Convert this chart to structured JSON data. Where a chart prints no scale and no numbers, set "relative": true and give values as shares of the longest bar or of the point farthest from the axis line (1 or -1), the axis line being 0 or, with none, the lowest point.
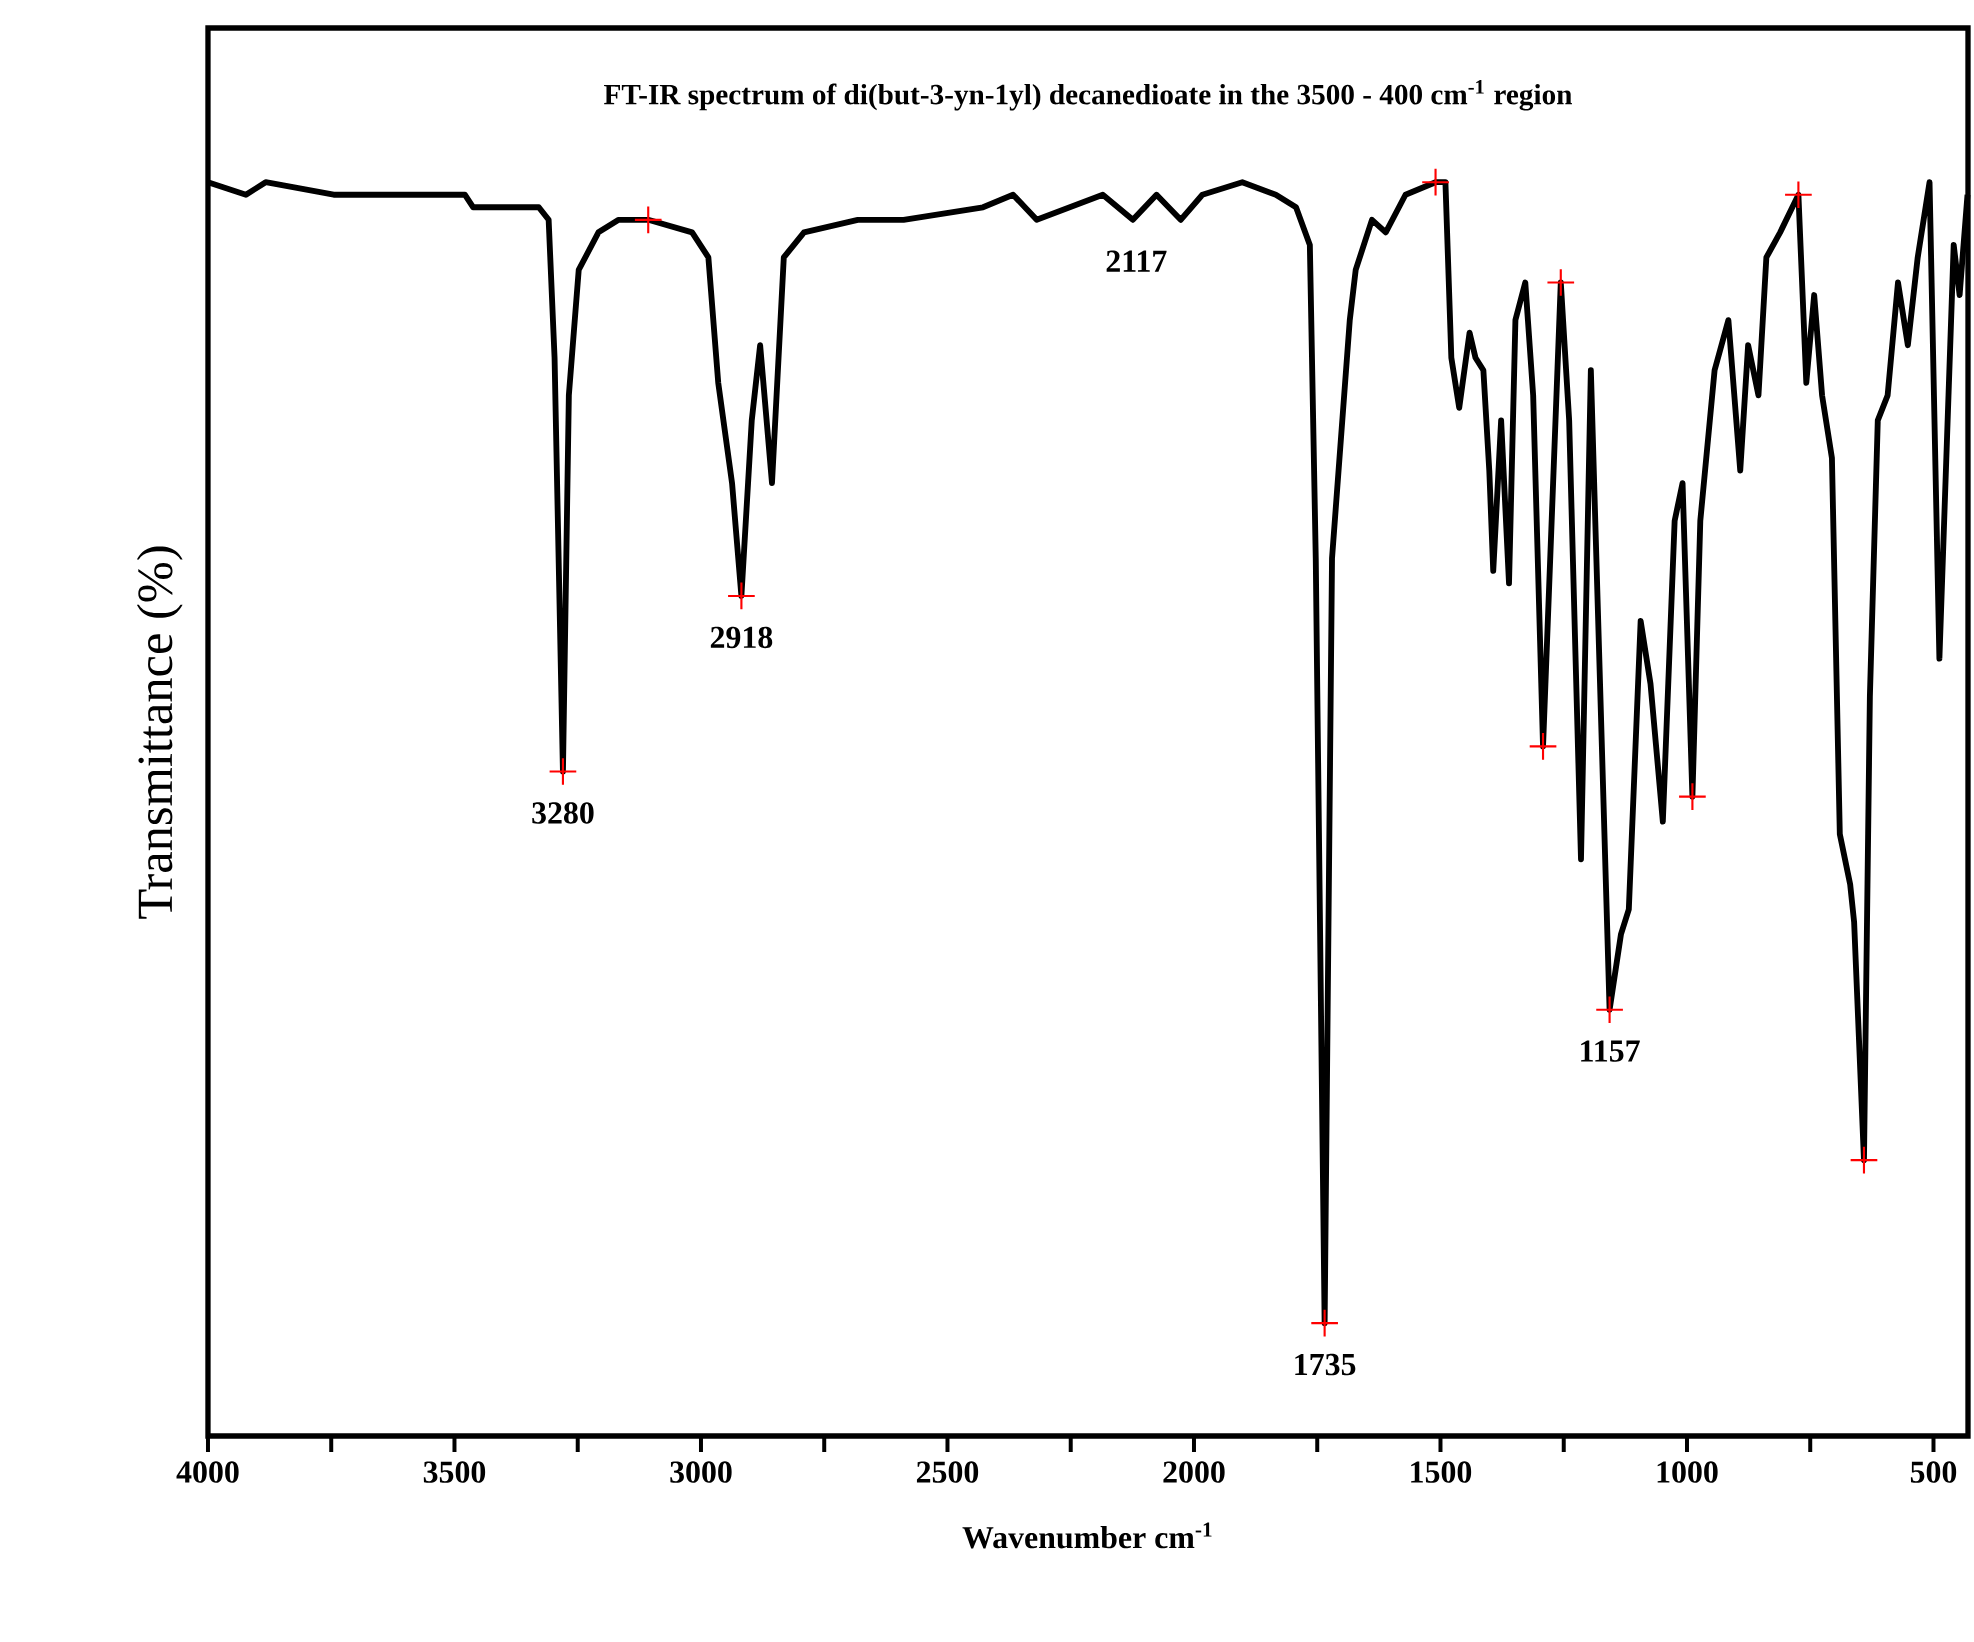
{
  "chart_data": {
    "type": "line",
    "title": "FT-IR spectrum of di(but-3-yn-1yl) decanedioate  in the 3500 - 400 cm$^{-1}$ region",
    "xlabel": "Wavenumber cm$^{-1}$",
    "ylabel": "Transmittance (%)",
    "relative": true,
    "marker": "none",
    "line_style": "solid",
    "xlim": [
      4000,
      430
    ],
    "xticks": [
      4000,
      {
        "value": 3750,
        "label": null
      },
      3500,
      {
        "value": 3250,
        "label": null
      },
      3000,
      {
        "value": 2750,
        "label": null
      },
      2500,
      {
        "value": 2250,
        "label": null
      },
      2000,
      {
        "value": 1750,
        "label": null
      },
      1500,
      {
        "value": 1250,
        "label": null
      },
      1000,
      {
        "value": 750,
        "label": null
      },
      500
    ],
    "series": [
      {
        "color": "#000000",
        "x": [
          4000,
          3923,
          3883,
          3745,
          3612,
          3559,
          3479,
          3462,
          3438,
          3369,
          3357,
          3329,
          3309,
          3297,
          3280,
          3268,
          3248,
          3208,
          3167,
          3107,
          3018,
          2985,
          2965,
          2937,
          2918,
          2897,
          2880,
          2856,
          2832,
          2791,
          2682,
          2589,
          2428,
          2367,
          2319,
          2185,
          2124,
          2076,
          2027,
          1983,
          1902,
          1834,
          1793,
          1765,
          1753,
          1735,
          1720,
          1684,
          1672,
          1639,
          1611,
          1571,
          1510,
          1490,
          1478,
          1462,
          1441,
          1429,
          1413,
          1401,
          1393,
          1377,
          1361,
          1348,
          1328,
          1312,
          1292,
          1256,
          1239,
          1215,
          1195,
          1157,
          1134,
          1118,
          1094,
          1074,
          1049,
          1025,
          1009,
          989,
          973,
          944,
          916,
          892,
          876,
          855,
          839,
          811,
          774,
          758,
          742,
          726,
          706,
          690,
          669,
          661,
          641,
          629,
          613,
          593,
          572,
          552,
          532,
          508,
          488,
          459,
          447,
          431
        ],
        "values": [
          1.0,
          0.99,
          1.0,
          0.99,
          0.99,
          0.99,
          0.99,
          0.98,
          0.98,
          0.98,
          0.98,
          0.98,
          0.97,
          0.86,
          0.53,
          0.83,
          0.93,
          0.96,
          0.97,
          0.97,
          0.96,
          0.94,
          0.84,
          0.76,
          0.67,
          0.81,
          0.87,
          0.76,
          0.94,
          0.96,
          0.97,
          0.97,
          0.98,
          0.99,
          0.97,
          0.99,
          0.97,
          0.99,
          0.97,
          0.99,
          1.0,
          0.99,
          0.98,
          0.95,
          0.7,
          0.09,
          0.7,
          0.89,
          0.93,
          0.97,
          0.96,
          0.99,
          1.0,
          1.0,
          0.86,
          0.82,
          0.88,
          0.86,
          0.85,
          0.77,
          0.69,
          0.81,
          0.68,
          0.89,
          0.92,
          0.83,
          0.55,
          0.92,
          0.81,
          0.46,
          0.85,
          0.34,
          0.4,
          0.42,
          0.65,
          0.6,
          0.49,
          0.73,
          0.76,
          0.51,
          0.73,
          0.85,
          0.89,
          0.77,
          0.87,
          0.83,
          0.94,
          0.96,
          0.99,
          0.84,
          0.91,
          0.83,
          0.78,
          0.48,
          0.44,
          0.41,
          0.22,
          0.59,
          0.81,
          0.83,
          0.92,
          0.87,
          0.94,
          1.0,
          0.62,
          0.95,
          0.91,
          0.99
        ]
      },
      {
        "type": "scatter",
        "color": "#ff0000",
        "marker": "cross",
        "x": [
          3280,
          3107,
          2918,
          1735,
          1510,
          1292,
          1256,
          1157,
          989,
          774,
          641
        ],
        "values": [
          0.53,
          0.97,
          0.67,
          0.09,
          1.0,
          0.55,
          0.92,
          0.34,
          0.51,
          0.99,
          0.22
        ]
      }
    ],
    "annotations": [
      {
        "text": "3280",
        "x": 3280,
        "y": 0.53
      },
      {
        "text": "2918",
        "x": 2918,
        "y": 0.67
      },
      {
        "text": "2117",
        "x": 2117,
        "y": 0.97
      },
      {
        "text": "1735",
        "x": 1735,
        "y": 0.09
      },
      {
        "text": "1157",
        "x": 1157,
        "y": 0.34
      }
    ]
  }
}
